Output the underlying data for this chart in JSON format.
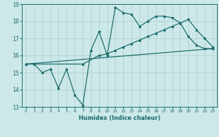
{
  "xlabel": "Humidex (Indice chaleur)",
  "xlim": [
    -0.5,
    23.5
  ],
  "ylim": [
    13,
    19
  ],
  "yticks": [
    13,
    14,
    15,
    16,
    17,
    18,
    19
  ],
  "xticks": [
    0,
    1,
    2,
    3,
    4,
    5,
    6,
    7,
    8,
    9,
    10,
    11,
    12,
    13,
    14,
    15,
    16,
    17,
    18,
    19,
    20,
    21,
    22,
    23
  ],
  "bg_color": "#cce8e8",
  "grid_color": "#aacccc",
  "line_color": "#1a6b6b",
  "line1_x": [
    0,
    1,
    2,
    3,
    4,
    5,
    6,
    7,
    8,
    9,
    10,
    11,
    12,
    13,
    14,
    15,
    16,
    17,
    18,
    19,
    20,
    21,
    22,
    23
  ],
  "line1_y": [
    15.5,
    15.5,
    15.0,
    15.2,
    14.1,
    15.2,
    13.7,
    13.1,
    16.3,
    17.4,
    16.0,
    18.8,
    18.5,
    18.4,
    17.7,
    18.0,
    18.3,
    18.3,
    18.2,
    17.9,
    17.1,
    16.6,
    16.4,
    16.4
  ],
  "line2_x": [
    0,
    23
  ],
  "line2_y": [
    15.5,
    16.4
  ],
  "line3_x": [
    0,
    7,
    9,
    10,
    11,
    12,
    13,
    14,
    15,
    16,
    17,
    18,
    19,
    20,
    21,
    22,
    23
  ],
  "line3_y": [
    15.5,
    15.5,
    16.0,
    16.1,
    16.3,
    16.5,
    16.7,
    16.9,
    17.1,
    17.3,
    17.5,
    17.7,
    17.9,
    18.1,
    17.5,
    17.0,
    16.5
  ]
}
